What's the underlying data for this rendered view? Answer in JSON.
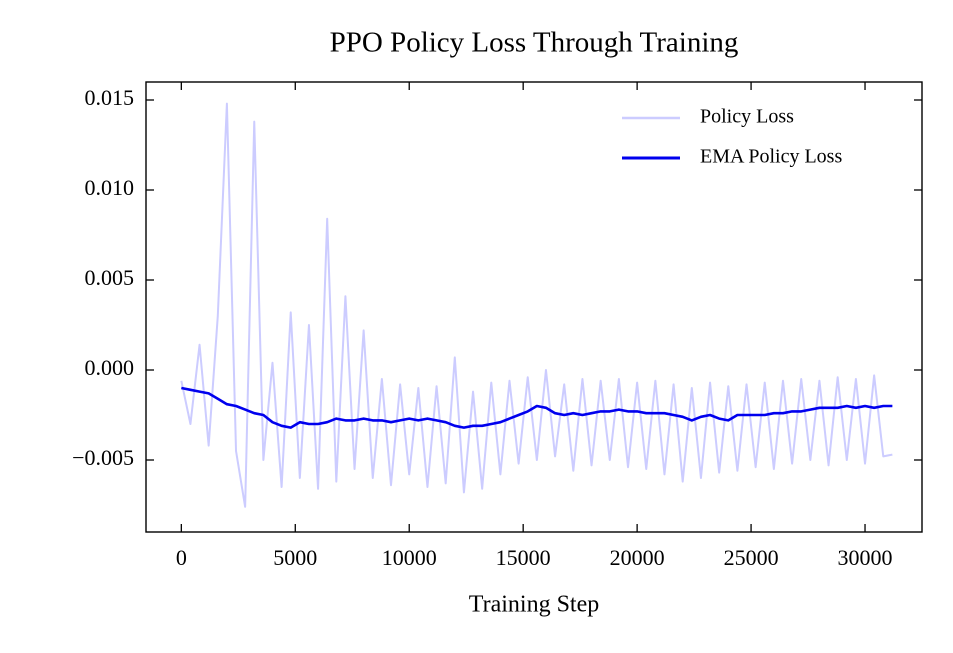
{
  "chart_data": {
    "type": "line",
    "title": "PPO Policy Loss Through Training",
    "x_label": "Training Step",
    "x": [
      0,
      400,
      800,
      1200,
      1600,
      2000,
      2400,
      2800,
      3200,
      3600,
      4000,
      4400,
      4800,
      5200,
      5600,
      6000,
      6400,
      6800,
      7200,
      7600,
      8000,
      8400,
      8800,
      9200,
      9600,
      10000,
      10400,
      10800,
      11200,
      11600,
      12000,
      12400,
      12800,
      13200,
      13600,
      14000,
      14400,
      14800,
      15200,
      15600,
      16000,
      16400,
      16800,
      17200,
      17600,
      18000,
      18400,
      18800,
      19200,
      19600,
      20000,
      20400,
      20800,
      21200,
      21600,
      22000,
      22400,
      22800,
      23200,
      23600,
      24000,
      24400,
      24800,
      25200,
      25600,
      26000,
      26400,
      26800,
      27200,
      27600,
      28000,
      28400,
      28800,
      29200,
      29600,
      30000,
      30400,
      30800,
      31200
    ],
    "series": [
      {
        "name": "Policy Loss",
        "color": "#ccccff",
        "values": [
          -0.0006,
          -0.003,
          0.0014,
          -0.0042,
          0.003,
          0.0148,
          -0.0045,
          -0.0076,
          0.0138,
          -0.005,
          0.0004,
          -0.0065,
          0.0032,
          -0.006,
          0.0025,
          -0.0066,
          0.0084,
          -0.0062,
          0.0041,
          -0.0055,
          0.0022,
          -0.006,
          -0.0005,
          -0.0064,
          -0.0008,
          -0.0058,
          -0.001,
          -0.0065,
          -0.0009,
          -0.0063,
          0.0007,
          -0.0068,
          -0.0012,
          -0.0066,
          -0.0007,
          -0.0058,
          -0.0006,
          -0.0052,
          -0.0004,
          -0.005,
          0.0,
          -0.0048,
          -0.0008,
          -0.0056,
          -0.0005,
          -0.0053,
          -0.0006,
          -0.005,
          -0.0005,
          -0.0054,
          -0.0007,
          -0.0055,
          -0.0006,
          -0.0058,
          -0.0008,
          -0.0062,
          -0.001,
          -0.006,
          -0.0007,
          -0.0057,
          -0.0009,
          -0.0056,
          -0.0008,
          -0.0054,
          -0.0007,
          -0.0055,
          -0.0006,
          -0.0052,
          -0.0005,
          -0.005,
          -0.0006,
          -0.0053,
          -0.0004,
          -0.005,
          -0.0005,
          -0.0052,
          -0.0003,
          -0.0048,
          -0.0047
        ]
      },
      {
        "name": "EMA Policy Loss",
        "color": "#0000ee",
        "values": [
          -0.001,
          -0.0011,
          -0.0012,
          -0.0013,
          -0.0016,
          -0.0019,
          -0.002,
          -0.0022,
          -0.0024,
          -0.0025,
          -0.0029,
          -0.0031,
          -0.0032,
          -0.0029,
          -0.003,
          -0.003,
          -0.0029,
          -0.0027,
          -0.0028,
          -0.0028,
          -0.0027,
          -0.0028,
          -0.0028,
          -0.0029,
          -0.0028,
          -0.0027,
          -0.0028,
          -0.0027,
          -0.0028,
          -0.0029,
          -0.0031,
          -0.0032,
          -0.0031,
          -0.0031,
          -0.003,
          -0.0029,
          -0.0027,
          -0.0025,
          -0.0023,
          -0.002,
          -0.0021,
          -0.0024,
          -0.0025,
          -0.0024,
          -0.0025,
          -0.0024,
          -0.0023,
          -0.0023,
          -0.0022,
          -0.0023,
          -0.0023,
          -0.0024,
          -0.0024,
          -0.0024,
          -0.0025,
          -0.0026,
          -0.0028,
          -0.0026,
          -0.0025,
          -0.0027,
          -0.0028,
          -0.0025,
          -0.0025,
          -0.0025,
          -0.0025,
          -0.0024,
          -0.0024,
          -0.0023,
          -0.0023,
          -0.0022,
          -0.0021,
          -0.0021,
          -0.0021,
          -0.002,
          -0.0021,
          -0.002,
          -0.0021,
          -0.002,
          -0.002
        ]
      }
    ],
    "xlim": [
      -1550,
      32500
    ],
    "xticks": [
      0,
      5000,
      10000,
      15000,
      20000,
      25000,
      30000
    ],
    "ylim": [
      -0.009,
      0.016
    ],
    "yticks": [
      {
        "value": -0.005,
        "label": "−0.005"
      },
      {
        "value": 0,
        "label": "0.000"
      },
      {
        "value": 0.005,
        "label": "0.005"
      },
      {
        "value": 0.01,
        "label": "0.010"
      },
      {
        "value": 0.015,
        "label": "0.015"
      }
    ],
    "legend": "upper right",
    "grid": false
  }
}
